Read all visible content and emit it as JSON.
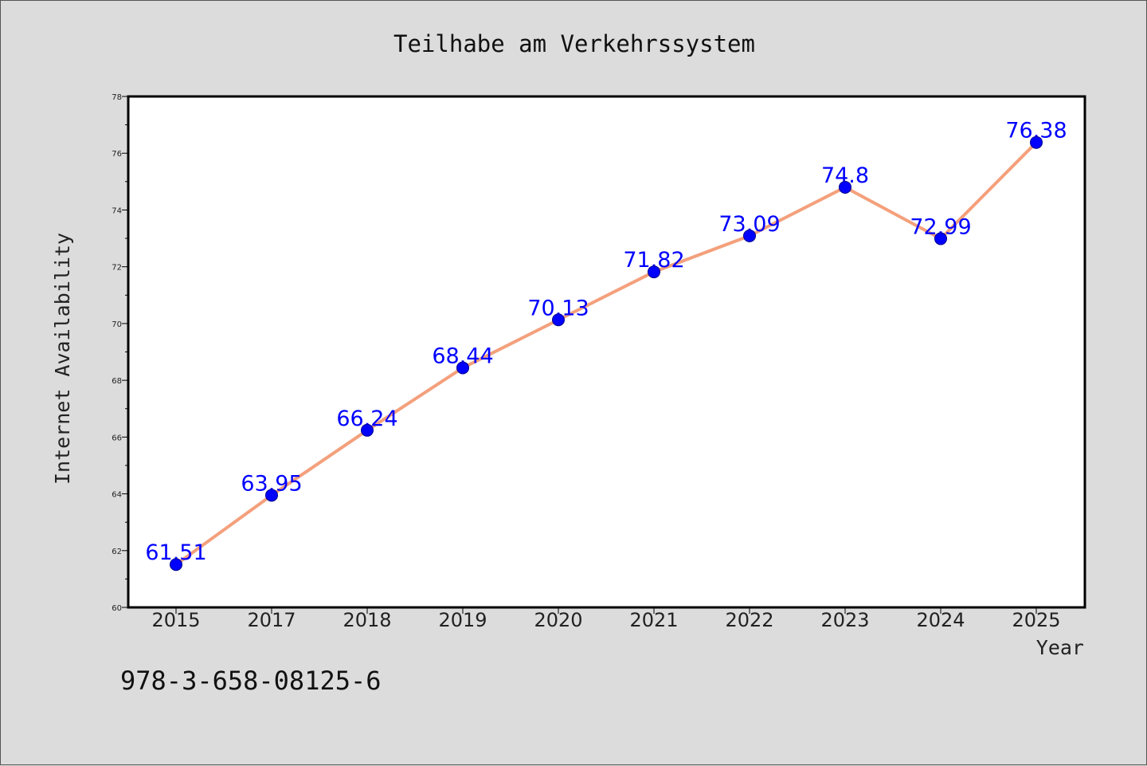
{
  "chart_data": {
    "type": "line",
    "title": "Teilhabe am Verkehrssystem",
    "xlabel": "Year",
    "ylabel": "Internet Availability",
    "categories": [
      "2015",
      "2017",
      "2018",
      "2019",
      "2020",
      "2021",
      "2022",
      "2023",
      "2024",
      "2025"
    ],
    "series": [
      {
        "values": [
          61.51,
          63.95,
          66.24,
          68.44,
          70.13,
          71.82,
          73.09,
          74.8,
          72.99,
          76.38
        ],
        "labels": [
          "61.51",
          "63.95",
          "66.24",
          "68.44",
          "70.13",
          "71.82",
          "73.09",
          "74.8",
          "72.99",
          "76.38"
        ]
      }
    ],
    "ylim": [
      60,
      78
    ],
    "yticks": [
      60,
      62,
      64,
      66,
      68,
      70,
      72,
      74,
      76,
      78
    ],
    "grid": false,
    "legend": "none",
    "colors": {
      "line": "#f4a07c",
      "marker": "#0000ff",
      "data_label": "#0000ff",
      "plot_background": "#ffffff",
      "figure_background": "#dcdcdc"
    }
  },
  "footer": {
    "isbn": "978-3-658-08125-6"
  }
}
